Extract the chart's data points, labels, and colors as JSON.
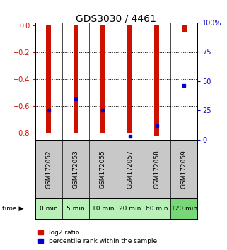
{
  "title": "GDS3030 / 4461",
  "samples": [
    "GSM172052",
    "GSM172053",
    "GSM172055",
    "GSM172057",
    "GSM172058",
    "GSM172059"
  ],
  "time_labels": [
    "0 min",
    "5 min",
    "10 min",
    "20 min",
    "60 min",
    "120 min"
  ],
  "log2_ratio": [
    -0.8,
    -0.8,
    -0.8,
    -0.8,
    -0.82,
    -0.05
  ],
  "percentile_rank": [
    25,
    35,
    25,
    3,
    12,
    46
  ],
  "bar_color": "#cc1100",
  "dot_color": "#0000cc",
  "ylim_left": [
    -0.85,
    0.02
  ],
  "ylim_right": [
    0,
    100
  ],
  "yticks_left": [
    0,
    -0.2,
    -0.4,
    -0.6,
    -0.8
  ],
  "yticks_right": [
    0,
    25,
    50,
    75,
    100
  ],
  "bg_plot": "#ffffff",
  "bg_label_gray": "#c8c8c8",
  "bg_label_green": "#b8f0b8",
  "bg_120min_green": "#78d878",
  "title_fontsize": 10,
  "tick_fontsize": 7,
  "sample_fontsize": 6.5,
  "time_fontsize": 7,
  "legend_fontsize": 6.5
}
